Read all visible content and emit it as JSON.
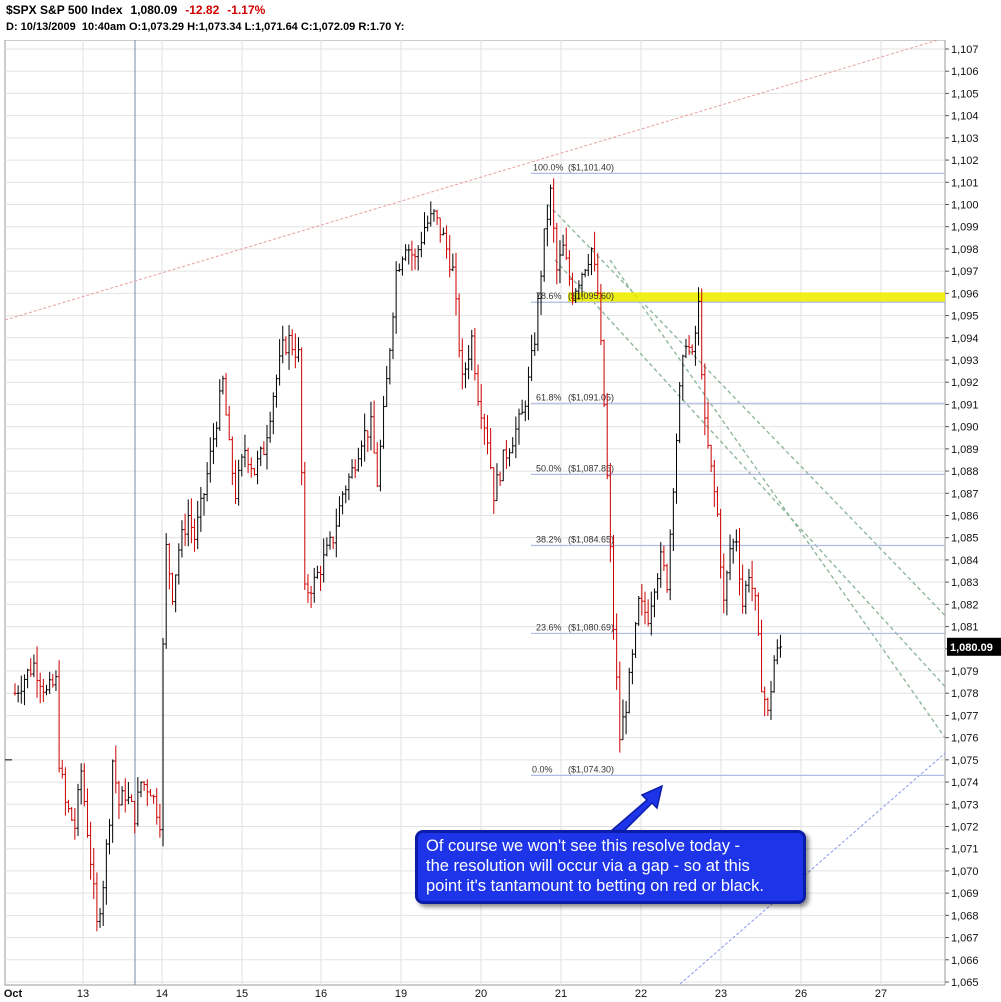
{
  "header": {
    "symbol": "$SPX",
    "name": "S&P 500 Index",
    "last": "1,080.09",
    "change": "-12.82",
    "change_pct": "-1.17%",
    "info_date_prefix": "D:",
    "info_date": "10/13/2009",
    "info_time": "10:40am",
    "open_label": "O:",
    "open": "1,073.29",
    "high_label": "H:",
    "high": "1,073.34",
    "low_label": "L:",
    "low": "1,071.64",
    "close_label": "C:",
    "close": "1,072.09",
    "range_label": "R:",
    "range": "1.70",
    "y_label": "Y:"
  },
  "colors": {
    "up_bar": "#000000",
    "down_bar": "#cc0000",
    "grid": "#e2e2e2",
    "fib_line": "#b0bce6",
    "upper_trend": "#e8a0a0",
    "lower_trend": "#8899ee",
    "channel": "#8fb89a",
    "highlight": "#eeee00",
    "callout_bg": "#1d34e8"
  },
  "callout": {
    "lines": [
      "Of course we won't see this resolve today -",
      "the resolution will occur via a gap - so at this",
      "point it's tantamount to betting on red or black."
    ]
  },
  "chart_data": {
    "type": "ohlc",
    "title": "$SPX S&P 500 Index",
    "ylim": [
      1064.5,
      1108
    ],
    "y_ticks": [
      1065,
      1066,
      1067,
      1068,
      1069,
      1070,
      1071,
      1072,
      1073,
      1074,
      1075,
      1076,
      1077,
      1078,
      1079,
      1080,
      1081,
      1082,
      1083,
      1084,
      1085,
      1086,
      1087,
      1088,
      1089,
      1090,
      1091,
      1092,
      1093,
      1094,
      1095,
      1096,
      1097,
      1098,
      1099,
      1100,
      1101,
      1102,
      1103,
      1104,
      1105,
      1106,
      1107
    ],
    "x_labels": [
      "Oct",
      "13",
      "14",
      "15",
      "16",
      "19",
      "20",
      "21",
      "22",
      "23",
      "26",
      "27"
    ],
    "last_price_tag": "1,080.09",
    "fib_levels": [
      {
        "label": "100.0%",
        "price_label": "($1,101.40)",
        "value": 1101.4
      },
      {
        "label": "78.6%",
        "price_label": "($1,095.60)",
        "value": 1095.6
      },
      {
        "label": "61.8%",
        "price_label": "($1,091.05)",
        "value": 1091.05
      },
      {
        "label": "50.0%",
        "price_label": "($1,087.85)",
        "value": 1087.85
      },
      {
        "label": "38.2%",
        "price_label": "($1,084.65)",
        "value": 1084.65
      },
      {
        "label": "23.6%",
        "price_label": "($1,080.69)",
        "value": 1080.69
      },
      {
        "label": "0.0%",
        "price_label": "($1,074.30)",
        "value": 1074.3
      }
    ],
    "highlight_level": 1095.6,
    "price_path_keypoints": [
      [
        0,
        1078
      ],
      [
        3,
        1078.7
      ],
      [
        6,
        1079.3
      ],
      [
        10,
        1078
      ],
      [
        13,
        1078.5
      ],
      [
        14,
        1075
      ],
      [
        16,
        1073
      ],
      [
        19,
        1072
      ],
      [
        21,
        1074.5
      ],
      [
        24,
        1070.5
      ],
      [
        26,
        1067.5
      ],
      [
        28,
        1069.5
      ],
      [
        30,
        1072.5
      ],
      [
        31,
        1075
      ],
      [
        33,
        1073
      ],
      [
        35,
        1073.5
      ],
      [
        38,
        1072.5
      ],
      [
        40,
        1074
      ],
      [
        43,
        1073.7
      ],
      [
        46,
        1072.3
      ],
      [
        47,
        1080
      ],
      [
        48,
        1084.5
      ],
      [
        50,
        1082.5
      ],
      [
        52,
        1084.5
      ],
      [
        55,
        1086
      ],
      [
        57,
        1085
      ],
      [
        60,
        1087
      ],
      [
        63,
        1089.5
      ],
      [
        66,
        1092
      ],
      [
        68,
        1089
      ],
      [
        70,
        1087
      ],
      [
        73,
        1089
      ],
      [
        76,
        1088
      ],
      [
        79,
        1089
      ],
      [
        82,
        1091.5
      ],
      [
        85,
        1093.5
      ],
      [
        87,
        1093.9
      ],
      [
        90,
        1093.2
      ],
      [
        92,
        1082.5
      ],
      [
        95,
        1083
      ],
      [
        98,
        1084
      ],
      [
        101,
        1085
      ],
      [
        104,
        1087
      ],
      [
        107,
        1088
      ],
      [
        110,
        1089.5
      ],
      [
        113,
        1090
      ],
      [
        115,
        1087.5
      ],
      [
        118,
        1092
      ],
      [
        121,
        1097
      ],
      [
        124,
        1098.3
      ],
      [
        127,
        1097.5
      ],
      [
        130,
        1099
      ],
      [
        133,
        1099.5
      ],
      [
        136,
        1098.5
      ],
      [
        139,
        1097
      ],
      [
        142,
        1092
      ],
      [
        145,
        1094
      ],
      [
        147,
        1091.5
      ],
      [
        150,
        1089.5
      ],
      [
        152,
        1087
      ],
      [
        155,
        1088.5
      ],
      [
        158,
        1089.5
      ],
      [
        161,
        1090.5
      ],
      [
        163,
        1092
      ],
      [
        165,
        1094
      ],
      [
        168,
        1098.5
      ],
      [
        170,
        1100.5
      ],
      [
        172,
        1097
      ],
      [
        174,
        1098
      ],
      [
        177,
        1096
      ],
      [
        180,
        1097
      ],
      [
        183,
        1098
      ],
      [
        185,
        1096
      ],
      [
        187,
        1091
      ],
      [
        190,
        1081
      ],
      [
        192,
        1076
      ],
      [
        194,
        1077.5
      ],
      [
        196,
        1079.5
      ],
      [
        198,
        1082
      ],
      [
        201,
        1081.5
      ],
      [
        203,
        1083
      ],
      [
        205,
        1084
      ],
      [
        207,
        1083
      ],
      [
        209,
        1087.5
      ],
      [
        211,
        1091.5
      ],
      [
        213,
        1094
      ],
      [
        215,
        1093
      ],
      [
        217,
        1095.4
      ],
      [
        219,
        1090
      ],
      [
        221,
        1088
      ],
      [
        223,
        1086
      ],
      [
        225,
        1082
      ],
      [
        227,
        1084.5
      ],
      [
        229,
        1085
      ],
      [
        231,
        1082
      ],
      [
        233,
        1083.5
      ],
      [
        235,
        1082
      ],
      [
        237,
        1078.5
      ],
      [
        239,
        1077
      ],
      [
        241,
        1079.5
      ],
      [
        243,
        1080.09
      ]
    ]
  }
}
